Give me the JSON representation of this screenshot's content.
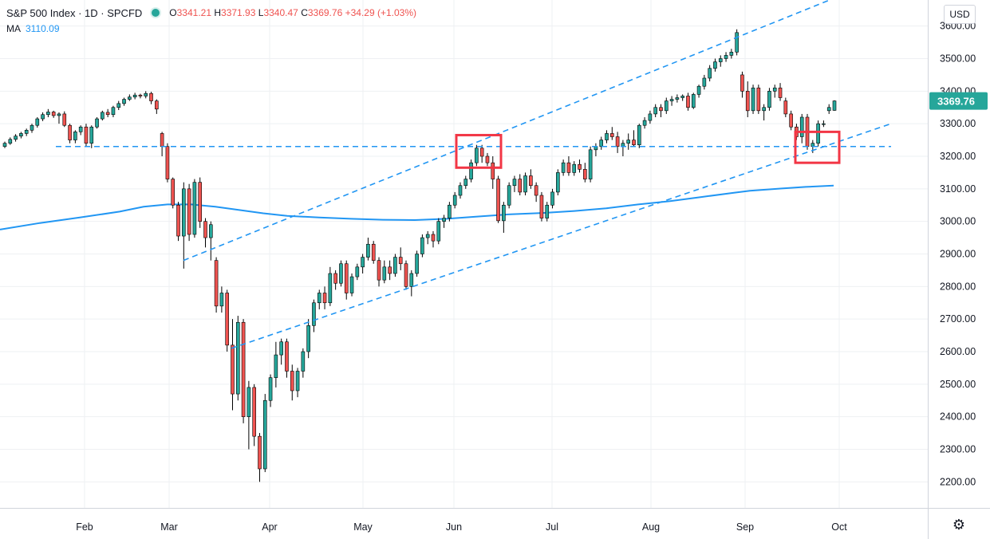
{
  "legend": {
    "symbol": "S&P 500 Index · 1D · SPCFD",
    "open_label": "O",
    "open": "3341.21",
    "high_label": "H",
    "high": "3371.93",
    "low_label": "L",
    "low": "3340.47",
    "close_label": "C",
    "close": "3369.76",
    "change": "+34.29 (+1.03%)",
    "ma_label": "MA",
    "ma_value": "3110.09"
  },
  "toolbar": {
    "currency": "USD",
    "settings_icon": "gear-icon"
  },
  "colors": {
    "up": "#26a69a",
    "down": "#ef5350",
    "ma": "#2196f3",
    "trendline": "#2196f3",
    "highlight": "#f23645",
    "last_price_bg": "#26a69a"
  },
  "chart_data": {
    "type": "candlestick",
    "series": [
      {
        "name": "S&P 500 Index",
        "kind": "ohlc",
        "last": 3369.76
      },
      {
        "name": "MA",
        "kind": "line",
        "last": 3110.09
      }
    ],
    "x_ticks": [
      "Feb",
      "Mar",
      "Apr",
      "May",
      "Jun",
      "Jul",
      "Aug",
      "Sep",
      "Oct"
    ],
    "y_ticks": [
      2200.0,
      2300.0,
      2400.0,
      2500.0,
      2600.0,
      2700.0,
      2800.0,
      2900.0,
      3000.0,
      3100.0,
      3200.0,
      3300.0,
      3400.0,
      3500.0,
      3600.0
    ],
    "y_tick_labels": [
      "2200.00",
      "2300.00",
      "2400.00",
      "2500.00",
      "2600.00",
      "2700.00",
      "2800.00",
      "2900.00",
      "3000.00",
      "3100.00",
      "3200.00",
      "3300.00",
      "3400.00",
      "3500.00",
      "3600.00"
    ],
    "ylim": [
      2120,
      3680
    ],
    "last_price_label": "3369.76",
    "candles": [
      [
        3230,
        3245,
        3225,
        3240
      ],
      [
        3240,
        3258,
        3235,
        3252
      ],
      [
        3252,
        3268,
        3245,
        3262
      ],
      [
        3262,
        3275,
        3255,
        3270
      ],
      [
        3270,
        3285,
        3262,
        3280
      ],
      [
        3280,
        3300,
        3272,
        3295
      ],
      [
        3295,
        3320,
        3288,
        3315
      ],
      [
        3315,
        3335,
        3308,
        3328
      ],
      [
        3328,
        3345,
        3320,
        3336
      ],
      [
        3336,
        3340,
        3318,
        3325
      ],
      [
        3325,
        3335,
        3300,
        3330
      ],
      [
        3330,
        3338,
        3290,
        3295
      ],
      [
        3295,
        3300,
        3240,
        3250
      ],
      [
        3250,
        3280,
        3240,
        3275
      ],
      [
        3275,
        3295,
        3265,
        3290
      ],
      [
        3290,
        3300,
        3230,
        3240
      ],
      [
        3240,
        3295,
        3225,
        3290
      ],
      [
        3290,
        3320,
        3285,
        3315
      ],
      [
        3315,
        3340,
        3310,
        3335
      ],
      [
        3335,
        3345,
        3320,
        3328
      ],
      [
        3328,
        3355,
        3320,
        3350
      ],
      [
        3350,
        3370,
        3342,
        3362
      ],
      [
        3362,
        3380,
        3355,
        3375
      ],
      [
        3375,
        3390,
        3370,
        3382
      ],
      [
        3382,
        3395,
        3375,
        3388
      ],
      [
        3388,
        3392,
        3378,
        3385
      ],
      [
        3385,
        3400,
        3378,
        3393
      ],
      [
        3393,
        3398,
        3360,
        3370
      ],
      [
        3370,
        3375,
        3330,
        3345
      ],
      [
        3270,
        3275,
        3200,
        3230
      ],
      [
        3230,
        3240,
        3120,
        3130
      ],
      [
        3130,
        3135,
        3040,
        3050
      ],
      [
        3050,
        3060,
        2940,
        2955
      ],
      [
        2955,
        3120,
        2855,
        3100
      ],
      [
        3100,
        3115,
        2940,
        2960
      ],
      [
        2960,
        3130,
        2950,
        3120
      ],
      [
        3120,
        3135,
        2980,
        3000
      ],
      [
        3000,
        3010,
        2920,
        2950
      ],
      [
        2950,
        3000,
        2880,
        2990
      ],
      [
        2880,
        2890,
        2720,
        2740
      ],
      [
        2740,
        2800,
        2720,
        2780
      ],
      [
        2780,
        2790,
        2600,
        2620
      ],
      [
        2620,
        2700,
        2420,
        2470
      ],
      [
        2470,
        2710,
        2450,
        2690
      ],
      [
        2690,
        2700,
        2380,
        2400
      ],
      [
        2400,
        2510,
        2300,
        2490
      ],
      [
        2490,
        2500,
        2310,
        2340
      ],
      [
        2340,
        2350,
        2200,
        2240
      ],
      [
        2240,
        2470,
        2230,
        2450
      ],
      [
        2450,
        2530,
        2430,
        2520
      ],
      [
        2520,
        2630,
        2490,
        2590
      ],
      [
        2590,
        2640,
        2560,
        2630
      ],
      [
        2630,
        2640,
        2520,
        2540
      ],
      [
        2540,
        2560,
        2450,
        2480
      ],
      [
        2480,
        2550,
        2460,
        2540
      ],
      [
        2540,
        2610,
        2520,
        2600
      ],
      [
        2600,
        2700,
        2580,
        2680
      ],
      [
        2680,
        2760,
        2660,
        2750
      ],
      [
        2750,
        2790,
        2730,
        2780
      ],
      [
        2780,
        2800,
        2730,
        2750
      ],
      [
        2750,
        2860,
        2740,
        2840
      ],
      [
        2840,
        2850,
        2790,
        2810
      ],
      [
        2810,
        2880,
        2800,
        2870
      ],
      [
        2870,
        2880,
        2760,
        2780
      ],
      [
        2780,
        2840,
        2770,
        2830
      ],
      [
        2830,
        2870,
        2820,
        2860
      ],
      [
        2860,
        2900,
        2840,
        2890
      ],
      [
        2890,
        2950,
        2880,
        2930
      ],
      [
        2930,
        2940,
        2870,
        2880
      ],
      [
        2880,
        2890,
        2800,
        2820
      ],
      [
        2820,
        2880,
        2810,
        2860
      ],
      [
        2860,
        2880,
        2820,
        2840
      ],
      [
        2840,
        2900,
        2830,
        2890
      ],
      [
        2890,
        2920,
        2850,
        2870
      ],
      [
        2870,
        2880,
        2790,
        2800
      ],
      [
        2800,
        2850,
        2770,
        2840
      ],
      [
        2840,
        2910,
        2830,
        2900
      ],
      [
        2900,
        2960,
        2890,
        2950
      ],
      [
        2950,
        2970,
        2930,
        2960
      ],
      [
        2960,
        2970,
        2920,
        2940
      ],
      [
        2940,
        3010,
        2930,
        3000
      ],
      [
        3000,
        3020,
        2980,
        3010
      ],
      [
        3010,
        3060,
        3000,
        3050
      ],
      [
        3050,
        3090,
        3040,
        3080
      ],
      [
        3080,
        3120,
        3070,
        3110
      ],
      [
        3110,
        3140,
        3100,
        3130
      ],
      [
        3130,
        3190,
        3120,
        3180
      ],
      [
        3180,
        3235,
        3170,
        3225
      ],
      [
        3225,
        3235,
        3180,
        3200
      ],
      [
        3200,
        3210,
        3170,
        3180
      ],
      [
        3180,
        3200,
        3100,
        3130
      ],
      [
        3130,
        3140,
        2995,
        3002
      ],
      [
        3002,
        3060,
        2965,
        3050
      ],
      [
        3050,
        3120,
        3040,
        3110
      ],
      [
        3110,
        3140,
        3090,
        3130
      ],
      [
        3130,
        3145,
        3080,
        3090
      ],
      [
        3090,
        3150,
        3080,
        3140
      ],
      [
        3140,
        3160,
        3100,
        3110
      ],
      [
        3110,
        3120,
        3060,
        3080
      ],
      [
        3080,
        3090,
        3000,
        3010
      ],
      [
        3010,
        3060,
        3000,
        3050
      ],
      [
        3050,
        3100,
        3040,
        3090
      ],
      [
        3090,
        3160,
        3080,
        3150
      ],
      [
        3150,
        3190,
        3140,
        3180
      ],
      [
        3180,
        3200,
        3140,
        3150
      ],
      [
        3150,
        3185,
        3140,
        3175
      ],
      [
        3175,
        3190,
        3150,
        3160
      ],
      [
        3160,
        3180,
        3120,
        3130
      ],
      [
        3130,
        3230,
        3120,
        3220
      ],
      [
        3220,
        3240,
        3200,
        3230
      ],
      [
        3230,
        3260,
        3220,
        3250
      ],
      [
        3250,
        3280,
        3240,
        3270
      ],
      [
        3270,
        3290,
        3250,
        3260
      ],
      [
        3260,
        3275,
        3210,
        3230
      ],
      [
        3230,
        3250,
        3200,
        3240
      ],
      [
        3240,
        3270,
        3220,
        3250
      ],
      [
        3250,
        3280,
        3230,
        3235
      ],
      [
        3235,
        3300,
        3225,
        3295
      ],
      [
        3295,
        3320,
        3285,
        3310
      ],
      [
        3310,
        3340,
        3300,
        3330
      ],
      [
        3330,
        3360,
        3320,
        3350
      ],
      [
        3350,
        3360,
        3320,
        3340
      ],
      [
        3340,
        3380,
        3330,
        3370
      ],
      [
        3370,
        3385,
        3355,
        3375
      ],
      [
        3375,
        3390,
        3365,
        3380
      ],
      [
        3380,
        3390,
        3370,
        3385
      ],
      [
        3385,
        3395,
        3340,
        3350
      ],
      [
        3350,
        3395,
        3345,
        3390
      ],
      [
        3390,
        3420,
        3380,
        3415
      ],
      [
        3415,
        3450,
        3405,
        3440
      ],
      [
        3440,
        3480,
        3430,
        3470
      ],
      [
        3470,
        3500,
        3460,
        3490
      ],
      [
        3490,
        3510,
        3475,
        3500
      ],
      [
        3500,
        3520,
        3490,
        3510
      ],
      [
        3510,
        3530,
        3500,
        3520
      ],
      [
        3520,
        3590,
        3510,
        3580
      ],
      [
        3450,
        3460,
        3380,
        3400
      ],
      [
        3400,
        3430,
        3320,
        3340
      ],
      [
        3340,
        3420,
        3330,
        3410
      ],
      [
        3410,
        3420,
        3330,
        3340
      ],
      [
        3340,
        3360,
        3310,
        3350
      ],
      [
        3350,
        3410,
        3340,
        3400
      ],
      [
        3400,
        3420,
        3380,
        3410
      ],
      [
        3410,
        3425,
        3370,
        3380
      ],
      [
        3370,
        3380,
        3320,
        3330
      ],
      [
        3330,
        3340,
        3280,
        3290
      ],
      [
        3290,
        3300,
        3250,
        3260
      ],
      [
        3260,
        3330,
        3240,
        3320
      ],
      [
        3320,
        3330,
        3220,
        3230
      ],
      [
        3230,
        3250,
        3210,
        3240
      ],
      [
        3240,
        3310,
        3230,
        3300
      ],
      [
        3300,
        3310,
        3290,
        3300
      ],
      [
        3340,
        3360,
        3330,
        3350
      ],
      [
        3341,
        3372,
        3340,
        3370
      ]
    ],
    "ma": [
      [
        0,
        2975
      ],
      [
        50,
        2995
      ],
      [
        100,
        3012
      ],
      [
        150,
        3030
      ],
      [
        180,
        3045
      ],
      [
        210,
        3052
      ],
      [
        240,
        3052
      ],
      [
        270,
        3045
      ],
      [
        300,
        3035
      ],
      [
        330,
        3025
      ],
      [
        360,
        3017
      ],
      [
        400,
        3012
      ],
      [
        440,
        3008
      ],
      [
        480,
        3005
      ],
      [
        520,
        3004
      ],
      [
        560,
        3008
      ],
      [
        600,
        3015
      ],
      [
        640,
        3022
      ],
      [
        680,
        3026
      ],
      [
        720,
        3032
      ],
      [
        760,
        3040
      ],
      [
        800,
        3052
      ],
      [
        840,
        3062
      ],
      [
        880,
        3075
      ],
      [
        920,
        3088
      ],
      [
        940,
        3094
      ],
      [
        980,
        3101
      ],
      [
        1010,
        3106
      ],
      [
        1045,
        3110
      ]
    ],
    "trendlines": [
      {
        "style": "dashed",
        "from": [
          70,
          3230
        ],
        "to": [
          1117,
          3230
        ]
      },
      {
        "style": "dashed",
        "from": [
          230,
          2880
        ],
        "to": [
          1040,
          3680
        ]
      },
      {
        "style": "dashed",
        "from": [
          290,
          2610
        ],
        "to": [
          1117,
          3300
        ]
      }
    ],
    "highlight_boxes": [
      {
        "from": [
          572,
          3265
        ],
        "to": [
          628,
          3165
        ]
      },
      {
        "from": [
          997,
          3275
        ],
        "to": [
          1052,
          3180
        ]
      }
    ]
  }
}
